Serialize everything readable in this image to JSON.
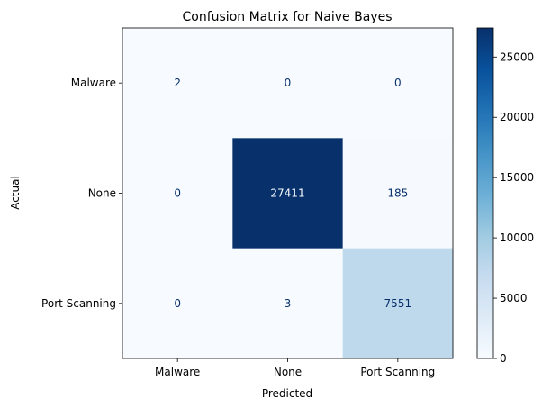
{
  "chart_data": {
    "type": "heatmap",
    "title": "Confusion Matrix for Naive Bayes",
    "xlabel": "Predicted",
    "ylabel": "Actual",
    "x_categories": [
      "Malware",
      "None",
      "Port Scanning"
    ],
    "y_categories": [
      "Malware",
      "None",
      "Port Scanning"
    ],
    "values": [
      [
        2,
        0,
        0
      ],
      [
        0,
        27411,
        185
      ],
      [
        0,
        3,
        7551
      ]
    ],
    "colormap": "Blues",
    "color_range": [
      0,
      27411
    ],
    "colorbar_ticks": [
      0,
      5000,
      10000,
      15000,
      20000,
      25000
    ],
    "colors": {
      "low": "#f7fbff",
      "high": "#08306b",
      "text_on_light": "#08306b",
      "text_on_dark": "#f7fbff"
    }
  }
}
